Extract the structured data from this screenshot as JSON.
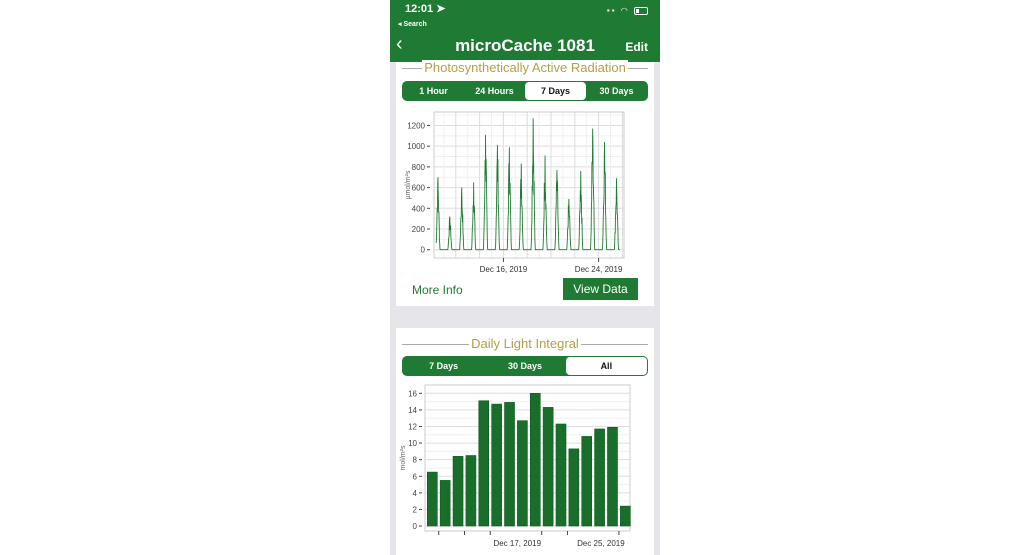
{
  "status_bar": {
    "time": "12:01 ➤",
    "back_app": "◂ Search"
  },
  "header": {
    "back_icon": "chevron-left-icon",
    "title": "microCache 1081",
    "edit_label": "Edit"
  },
  "colors": {
    "brand_green": "#1f7a33",
    "title_gold": "#b79d45"
  },
  "par_card": {
    "title": "Photosynthetically Active Radiation",
    "tabs": [
      {
        "label": "1 Hour"
      },
      {
        "label": "24 Hours"
      },
      {
        "label": "7 Days",
        "selected": true
      },
      {
        "label": "30 Days"
      }
    ],
    "more_info_label": "More Info",
    "view_data_label": "View Data"
  },
  "dli_card": {
    "title": "Daily Light Integral",
    "tabs": [
      {
        "label": "7 Days"
      },
      {
        "label": "30 Days"
      },
      {
        "label": "All",
        "selected": true
      }
    ]
  },
  "chart_data": [
    {
      "type": "line",
      "ylabel": "µmol/m²s",
      "y_ticks": [
        "1200",
        "1000",
        "800",
        "600",
        "400",
        "200",
        "0"
      ],
      "ylim": [
        -80,
        1330
      ],
      "x_ticks": [
        "Dec 16, 2019",
        "Dec 24, 2019"
      ],
      "grid": true,
      "daily_peaks": [
        700,
        320,
        600,
        650,
        1110,
        1010,
        990,
        830,
        1270,
        910,
        770,
        490,
        760,
        1170,
        1040,
        690
      ],
      "series_color": "#1f7a33"
    },
    {
      "type": "bar",
      "ylabel": "mol/m²s",
      "y_ticks": [
        "16",
        "14",
        "12",
        "10",
        "8",
        "6",
        "4",
        "2",
        "0"
      ],
      "ylim": [
        -0.6,
        17
      ],
      "x_ticks": [
        "Dec 17, 2019",
        "Dec 25, 2019"
      ],
      "grid": true,
      "values": [
        6.5,
        5.5,
        8.4,
        8.5,
        15.1,
        14.7,
        14.9,
        12.7,
        16.0,
        14.3,
        12.3,
        9.3,
        10.8,
        11.7,
        11.9,
        2.4
      ],
      "series_color": "#1a6e2b"
    }
  ]
}
